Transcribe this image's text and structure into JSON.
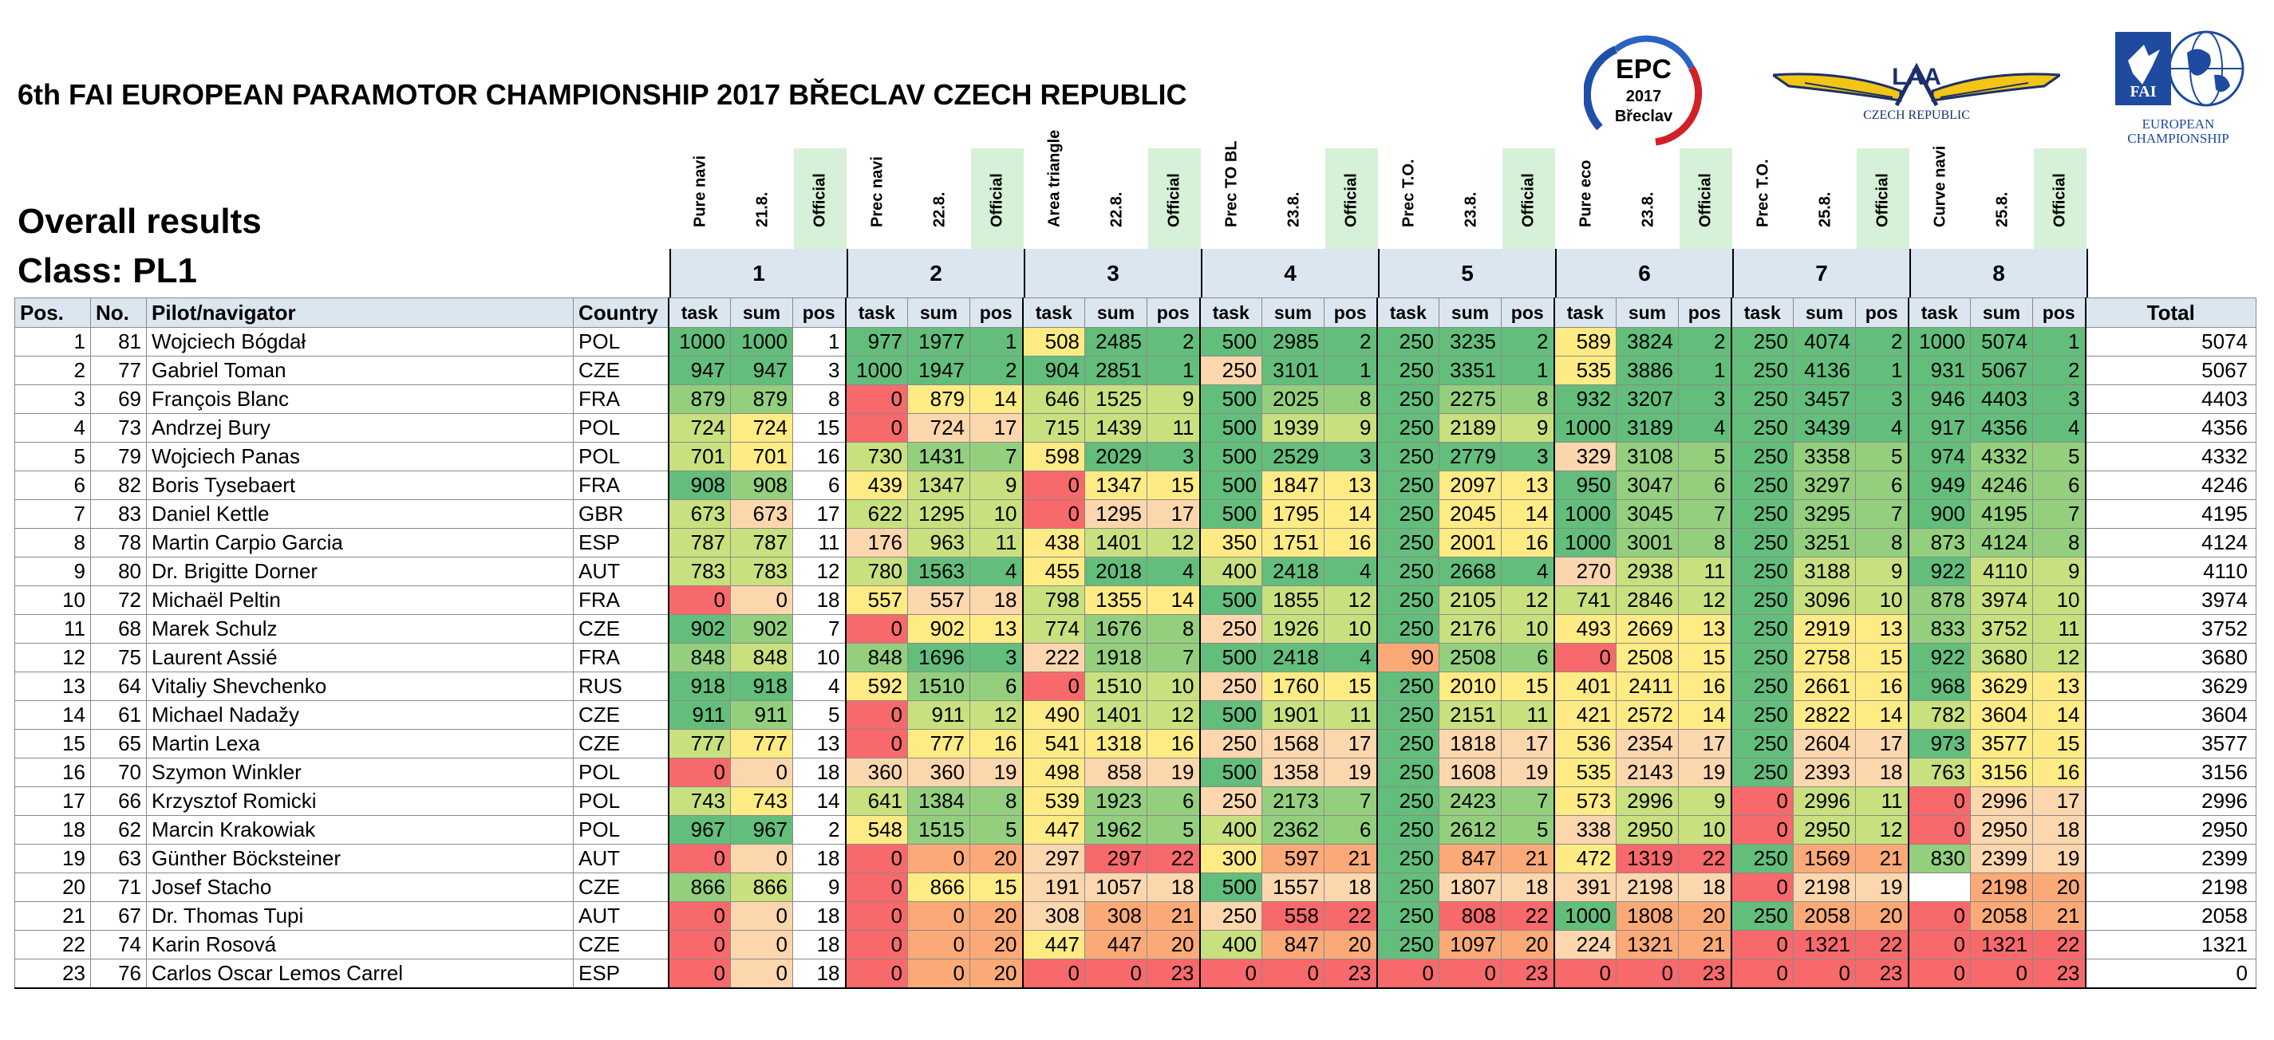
{
  "header": {
    "title": "6th FAI EUROPEAN PARAMOTOR CHAMPIONSHIP 2017 BŘECLAV CZECH REPUBLIC",
    "subtitle": "Overall results",
    "class_label": "Class: PL1"
  },
  "logos": {
    "epc": {
      "name": "EPC",
      "year": "2017",
      "place": "Břeclav"
    },
    "laa": {
      "text": "LAA",
      "sub": "CZECH REPUBLIC"
    },
    "fai": {
      "text": "FAI",
      "line1": "EUROPEAN",
      "line2": "CHAMPIONSHIP"
    }
  },
  "tasks": [
    {
      "num": "1",
      "name": "Pure navi",
      "date": "21.8.",
      "status": "Official"
    },
    {
      "num": "2",
      "name": "Prec navi",
      "date": "22.8.",
      "status": "Official"
    },
    {
      "num": "3",
      "name": "Area triangle",
      "date": "22.8.",
      "status": "Official"
    },
    {
      "num": "4",
      "name": "Prec TO BL",
      "date": "23.8.",
      "status": "Official"
    },
    {
      "num": "5",
      "name": "Prec T.O.",
      "date": "23.8.",
      "status": "Official"
    },
    {
      "num": "6",
      "name": "Pure eco",
      "date": "23.8.",
      "status": "Official"
    },
    {
      "num": "7",
      "name": "Prec T.O.",
      "date": "25.8.",
      "status": "Official"
    },
    {
      "num": "8",
      "name": "Curve navi",
      "date": "25.8.",
      "status": "Official"
    }
  ],
  "columns": {
    "pos": "Pos.",
    "no": "No.",
    "pilot": "Pilot/navigator",
    "country": "Country",
    "task": "task",
    "sum": "sum",
    "rank": "pos",
    "total": "Total"
  },
  "colors": {
    "red": "#f8696b",
    "orange": "#fbaa77",
    "peach": "#fcd7ad",
    "yellow": "#ffeb84",
    "lightgreen": "#c8e07e",
    "green": "#94cf7e",
    "darkgreen": "#63be7b",
    "header_blue": "#dce6f1",
    "official_green": "#d6f1d8"
  },
  "rows": [
    {
      "pos": "1",
      "no": "81",
      "pilot": "Wojciech Bógdał",
      "country": "POL",
      "t": [
        [
          "1000",
          "1000",
          "1"
        ],
        [
          "977",
          "1977",
          "1"
        ],
        [
          "508",
          "2485",
          "2"
        ],
        [
          "500",
          "2985",
          "2"
        ],
        [
          "250",
          "3235",
          "2"
        ],
        [
          "589",
          "3824",
          "2"
        ],
        [
          "250",
          "4074",
          "2"
        ],
        [
          "1000",
          "5074",
          "1"
        ]
      ],
      "total": "5074"
    },
    {
      "pos": "2",
      "no": "77",
      "pilot": "Gabriel Toman",
      "country": "CZE",
      "t": [
        [
          "947",
          "947",
          "3"
        ],
        [
          "1000",
          "1947",
          "2"
        ],
        [
          "904",
          "2851",
          "1"
        ],
        [
          "250",
          "3101",
          "1"
        ],
        [
          "250",
          "3351",
          "1"
        ],
        [
          "535",
          "3886",
          "1"
        ],
        [
          "250",
          "4136",
          "1"
        ],
        [
          "931",
          "5067",
          "2"
        ]
      ],
      "total": "5067"
    },
    {
      "pos": "3",
      "no": "69",
      "pilot": "François Blanc",
      "country": "FRA",
      "t": [
        [
          "879",
          "879",
          "8"
        ],
        [
          "0",
          "879",
          "14"
        ],
        [
          "646",
          "1525",
          "9"
        ],
        [
          "500",
          "2025",
          "8"
        ],
        [
          "250",
          "2275",
          "8"
        ],
        [
          "932",
          "3207",
          "3"
        ],
        [
          "250",
          "3457",
          "3"
        ],
        [
          "946",
          "4403",
          "3"
        ]
      ],
      "total": "4403"
    },
    {
      "pos": "4",
      "no": "73",
      "pilot": "Andrzej Bury",
      "country": "POL",
      "t": [
        [
          "724",
          "724",
          "15"
        ],
        [
          "0",
          "724",
          "17"
        ],
        [
          "715",
          "1439",
          "11"
        ],
        [
          "500",
          "1939",
          "9"
        ],
        [
          "250",
          "2189",
          "9"
        ],
        [
          "1000",
          "3189",
          "4"
        ],
        [
          "250",
          "3439",
          "4"
        ],
        [
          "917",
          "4356",
          "4"
        ]
      ],
      "total": "4356"
    },
    {
      "pos": "5",
      "no": "79",
      "pilot": "Wojciech Panas",
      "country": "POL",
      "t": [
        [
          "701",
          "701",
          "16"
        ],
        [
          "730",
          "1431",
          "7"
        ],
        [
          "598",
          "2029",
          "3"
        ],
        [
          "500",
          "2529",
          "3"
        ],
        [
          "250",
          "2779",
          "3"
        ],
        [
          "329",
          "3108",
          "5"
        ],
        [
          "250",
          "3358",
          "5"
        ],
        [
          "974",
          "4332",
          "5"
        ]
      ],
      "total": "4332"
    },
    {
      "pos": "6",
      "no": "82",
      "pilot": "Boris Tysebaert",
      "country": "FRA",
      "t": [
        [
          "908",
          "908",
          "6"
        ],
        [
          "439",
          "1347",
          "9"
        ],
        [
          "0",
          "1347",
          "15"
        ],
        [
          "500",
          "1847",
          "13"
        ],
        [
          "250",
          "2097",
          "13"
        ],
        [
          "950",
          "3047",
          "6"
        ],
        [
          "250",
          "3297",
          "6"
        ],
        [
          "949",
          "4246",
          "6"
        ]
      ],
      "total": "4246"
    },
    {
      "pos": "7",
      "no": "83",
      "pilot": "Daniel Kettle",
      "country": "GBR",
      "t": [
        [
          "673",
          "673",
          "17"
        ],
        [
          "622",
          "1295",
          "10"
        ],
        [
          "0",
          "1295",
          "17"
        ],
        [
          "500",
          "1795",
          "14"
        ],
        [
          "250",
          "2045",
          "14"
        ],
        [
          "1000",
          "3045",
          "7"
        ],
        [
          "250",
          "3295",
          "7"
        ],
        [
          "900",
          "4195",
          "7"
        ]
      ],
      "total": "4195"
    },
    {
      "pos": "8",
      "no": "78",
      "pilot": "Martin Carpio Garcia",
      "country": "ESP",
      "t": [
        [
          "787",
          "787",
          "11"
        ],
        [
          "176",
          "963",
          "11"
        ],
        [
          "438",
          "1401",
          "12"
        ],
        [
          "350",
          "1751",
          "16"
        ],
        [
          "250",
          "2001",
          "16"
        ],
        [
          "1000",
          "3001",
          "8"
        ],
        [
          "250",
          "3251",
          "8"
        ],
        [
          "873",
          "4124",
          "8"
        ]
      ],
      "total": "4124"
    },
    {
      "pos": "9",
      "no": "80",
      "pilot": "Dr. Brigitte Dorner",
      "country": "AUT",
      "t": [
        [
          "783",
          "783",
          "12"
        ],
        [
          "780",
          "1563",
          "4"
        ],
        [
          "455",
          "2018",
          "4"
        ],
        [
          "400",
          "2418",
          "4"
        ],
        [
          "250",
          "2668",
          "4"
        ],
        [
          "270",
          "2938",
          "11"
        ],
        [
          "250",
          "3188",
          "9"
        ],
        [
          "922",
          "4110",
          "9"
        ]
      ],
      "total": "4110"
    },
    {
      "pos": "10",
      "no": "72",
      "pilot": "Michaël Peltin",
      "country": "FRA",
      "t": [
        [
          "0",
          "0",
          "18"
        ],
        [
          "557",
          "557",
          "18"
        ],
        [
          "798",
          "1355",
          "14"
        ],
        [
          "500",
          "1855",
          "12"
        ],
        [
          "250",
          "2105",
          "12"
        ],
        [
          "741",
          "2846",
          "12"
        ],
        [
          "250",
          "3096",
          "10"
        ],
        [
          "878",
          "3974",
          "10"
        ]
      ],
      "total": "3974"
    },
    {
      "pos": "11",
      "no": "68",
      "pilot": "Marek Schulz",
      "country": "CZE",
      "t": [
        [
          "902",
          "902",
          "7"
        ],
        [
          "0",
          "902",
          "13"
        ],
        [
          "774",
          "1676",
          "8"
        ],
        [
          "250",
          "1926",
          "10"
        ],
        [
          "250",
          "2176",
          "10"
        ],
        [
          "493",
          "2669",
          "13"
        ],
        [
          "250",
          "2919",
          "13"
        ],
        [
          "833",
          "3752",
          "11"
        ]
      ],
      "total": "3752"
    },
    {
      "pos": "12",
      "no": "75",
      "pilot": "Laurent Assié",
      "country": "FRA",
      "t": [
        [
          "848",
          "848",
          "10"
        ],
        [
          "848",
          "1696",
          "3"
        ],
        [
          "222",
          "1918",
          "7"
        ],
        [
          "500",
          "2418",
          "4"
        ],
        [
          "90",
          "2508",
          "6"
        ],
        [
          "0",
          "2508",
          "15"
        ],
        [
          "250",
          "2758",
          "15"
        ],
        [
          "922",
          "3680",
          "12"
        ]
      ],
      "total": "3680"
    },
    {
      "pos": "13",
      "no": "64",
      "pilot": "Vitaliy Shevchenko",
      "country": "RUS",
      "t": [
        [
          "918",
          "918",
          "4"
        ],
        [
          "592",
          "1510",
          "6"
        ],
        [
          "0",
          "1510",
          "10"
        ],
        [
          "250",
          "1760",
          "15"
        ],
        [
          "250",
          "2010",
          "15"
        ],
        [
          "401",
          "2411",
          "16"
        ],
        [
          "250",
          "2661",
          "16"
        ],
        [
          "968",
          "3629",
          "13"
        ]
      ],
      "total": "3629"
    },
    {
      "pos": "14",
      "no": "61",
      "pilot": "Michael Nadažy",
      "country": "CZE",
      "t": [
        [
          "911",
          "911",
          "5"
        ],
        [
          "0",
          "911",
          "12"
        ],
        [
          "490",
          "1401",
          "12"
        ],
        [
          "500",
          "1901",
          "11"
        ],
        [
          "250",
          "2151",
          "11"
        ],
        [
          "421",
          "2572",
          "14"
        ],
        [
          "250",
          "2822",
          "14"
        ],
        [
          "782",
          "3604",
          "14"
        ]
      ],
      "total": "3604"
    },
    {
      "pos": "15",
      "no": "65",
      "pilot": "Martin Lexa",
      "country": "CZE",
      "t": [
        [
          "777",
          "777",
          "13"
        ],
        [
          "0",
          "777",
          "16"
        ],
        [
          "541",
          "1318",
          "16"
        ],
        [
          "250",
          "1568",
          "17"
        ],
        [
          "250",
          "1818",
          "17"
        ],
        [
          "536",
          "2354",
          "17"
        ],
        [
          "250",
          "2604",
          "17"
        ],
        [
          "973",
          "3577",
          "15"
        ]
      ],
      "total": "3577"
    },
    {
      "pos": "16",
      "no": "70",
      "pilot": "Szymon Winkler",
      "country": "POL",
      "t": [
        [
          "0",
          "0",
          "18"
        ],
        [
          "360",
          "360",
          "19"
        ],
        [
          "498",
          "858",
          "19"
        ],
        [
          "500",
          "1358",
          "19"
        ],
        [
          "250",
          "1608",
          "19"
        ],
        [
          "535",
          "2143",
          "19"
        ],
        [
          "250",
          "2393",
          "18"
        ],
        [
          "763",
          "3156",
          "16"
        ]
      ],
      "total": "3156"
    },
    {
      "pos": "17",
      "no": "66",
      "pilot": "Krzysztof Romicki",
      "country": "POL",
      "t": [
        [
          "743",
          "743",
          "14"
        ],
        [
          "641",
          "1384",
          "8"
        ],
        [
          "539",
          "1923",
          "6"
        ],
        [
          "250",
          "2173",
          "7"
        ],
        [
          "250",
          "2423",
          "7"
        ],
        [
          "573",
          "2996",
          "9"
        ],
        [
          "0",
          "2996",
          "11"
        ],
        [
          "0",
          "2996",
          "17"
        ]
      ],
      "total": "2996"
    },
    {
      "pos": "18",
      "no": "62",
      "pilot": "Marcin Krakowiak",
      "country": "POL",
      "t": [
        [
          "967",
          "967",
          "2"
        ],
        [
          "548",
          "1515",
          "5"
        ],
        [
          "447",
          "1962",
          "5"
        ],
        [
          "400",
          "2362",
          "6"
        ],
        [
          "250",
          "2612",
          "5"
        ],
        [
          "338",
          "2950",
          "10"
        ],
        [
          "0",
          "2950",
          "12"
        ],
        [
          "0",
          "2950",
          "18"
        ]
      ],
      "total": "2950"
    },
    {
      "pos": "19",
      "no": "63",
      "pilot": "Günther Böcksteiner",
      "country": "AUT",
      "t": [
        [
          "0",
          "0",
          "18"
        ],
        [
          "0",
          "0",
          "20"
        ],
        [
          "297",
          "297",
          "22"
        ],
        [
          "300",
          "597",
          "21"
        ],
        [
          "250",
          "847",
          "21"
        ],
        [
          "472",
          "1319",
          "22"
        ],
        [
          "250",
          "1569",
          "21"
        ],
        [
          "830",
          "2399",
          "19"
        ]
      ],
      "total": "2399"
    },
    {
      "pos": "20",
      "no": "71",
      "pilot": "Josef Stacho",
      "country": "CZE",
      "t": [
        [
          "866",
          "866",
          "9"
        ],
        [
          "0",
          "866",
          "15"
        ],
        [
          "191",
          "1057",
          "18"
        ],
        [
          "500",
          "1557",
          "18"
        ],
        [
          "250",
          "1807",
          "18"
        ],
        [
          "391",
          "2198",
          "18"
        ],
        [
          "0",
          "2198",
          "19"
        ],
        [
          "",
          "2198",
          "20"
        ]
      ],
      "total": "2198"
    },
    {
      "pos": "21",
      "no": "67",
      "pilot": "Dr. Thomas Tupi",
      "country": "AUT",
      "t": [
        [
          "0",
          "0",
          "18"
        ],
        [
          "0",
          "0",
          "20"
        ],
        [
          "308",
          "308",
          "21"
        ],
        [
          "250",
          "558",
          "22"
        ],
        [
          "250",
          "808",
          "22"
        ],
        [
          "1000",
          "1808",
          "20"
        ],
        [
          "250",
          "2058",
          "20"
        ],
        [
          "0",
          "2058",
          "21"
        ]
      ],
      "total": "2058"
    },
    {
      "pos": "22",
      "no": "74",
      "pilot": "Karin Rosová",
      "country": "CZE",
      "t": [
        [
          "0",
          "0",
          "18"
        ],
        [
          "0",
          "0",
          "20"
        ],
        [
          "447",
          "447",
          "20"
        ],
        [
          "400",
          "847",
          "20"
        ],
        [
          "250",
          "1097",
          "20"
        ],
        [
          "224",
          "1321",
          "21"
        ],
        [
          "0",
          "1321",
          "22"
        ],
        [
          "0",
          "1321",
          "22"
        ]
      ],
      "total": "1321"
    },
    {
      "pos": "23",
      "no": "76",
      "pilot": "Carlos Oscar Lemos Carrel",
      "country": "ESP",
      "t": [
        [
          "0",
          "0",
          "18"
        ],
        [
          "0",
          "0",
          "20"
        ],
        [
          "0",
          "0",
          "23"
        ],
        [
          "0",
          "0",
          "23"
        ],
        [
          "0",
          "0",
          "23"
        ],
        [
          "0",
          "0",
          "23"
        ],
        [
          "0",
          "0",
          "23"
        ],
        [
          "0",
          "0",
          "23"
        ]
      ],
      "total": "0"
    }
  ]
}
